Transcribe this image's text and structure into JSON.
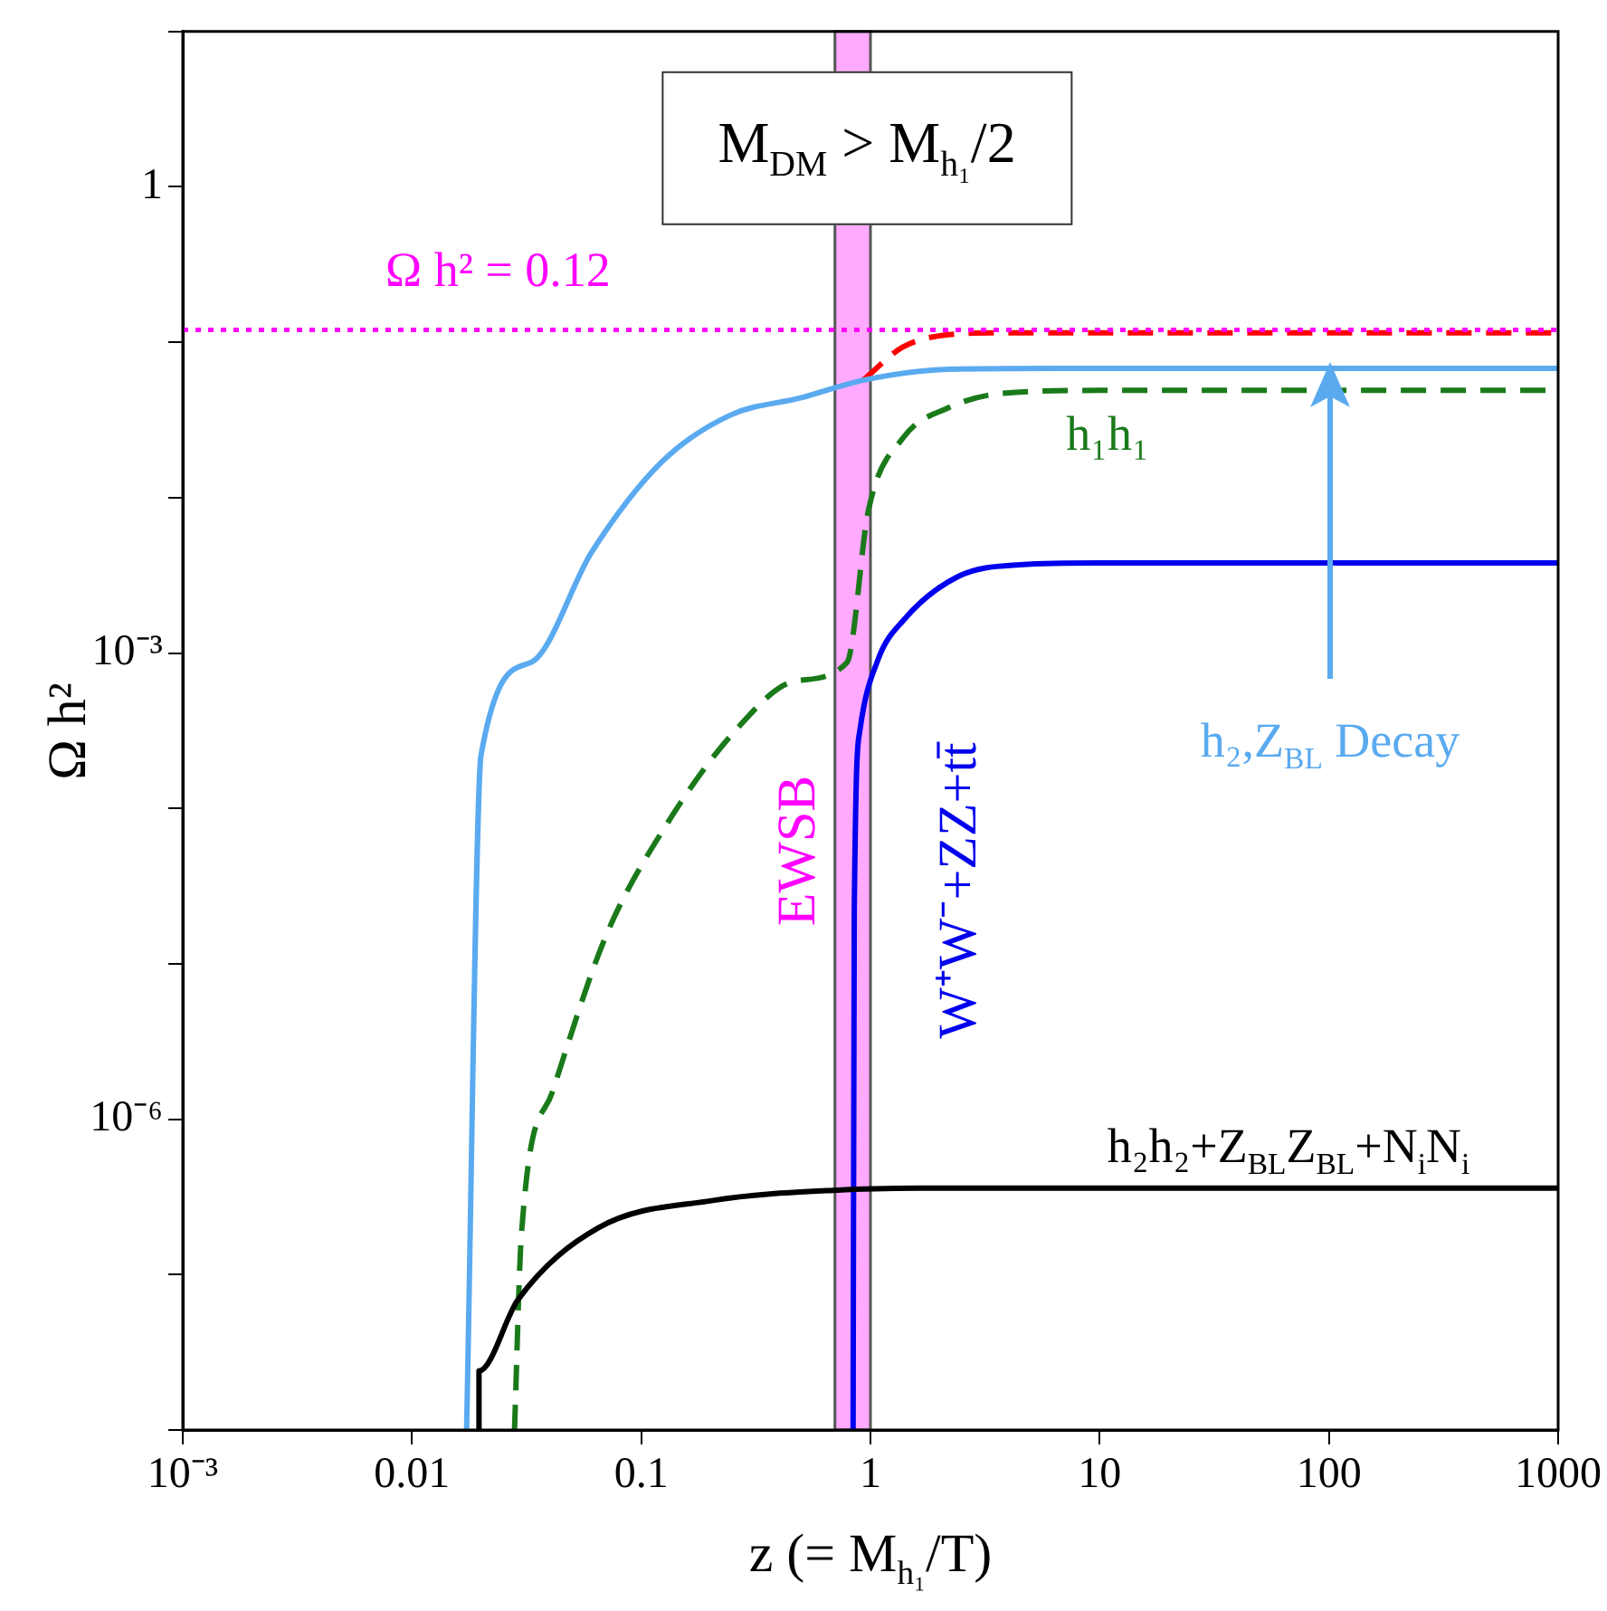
{
  "chart_data": {
    "type": "line",
    "xlabel": "z (= M$_{h₁}$/T)",
    "ylabel": "Ω h²",
    "log": "xy",
    "xlim": [
      0.001,
      1000
    ],
    "xticks": [
      {
        "value": 0.001,
        "label": "10⁻³"
      },
      0.01,
      0.1,
      1,
      10,
      100,
      1000
    ],
    "ylim": [
      1e-08,
      10
    ],
    "yticks": [
      {
        "value": 1e-08,
        "label": null
      },
      {
        "value": 1e-07,
        "label": null
      },
      {
        "value": 1e-06,
        "label": "10⁻⁶"
      },
      {
        "value": 1e-05,
        "label": null
      },
      {
        "value": 0.0001,
        "label": null
      },
      {
        "value": 0.001,
        "label": "10⁻³"
      },
      {
        "value": 0.01,
        "label": null
      },
      {
        "value": 0.1,
        "label": null
      },
      1,
      {
        "value": 10,
        "label": null
      }
    ],
    "series": [
      {
        "color": "#ff0000",
        "line_style": "dashed",
        "x": [
          0.93,
          1.38,
          2.2,
          3.5,
          10,
          1000
        ],
        "values": [
          0.057,
          0.093,
          0.112,
          0.115,
          0.115,
          0.115
        ]
      },
      {
        "name": "h₂,Z$_{BL}$ Decay",
        "color": "#5aaaf0",
        "line_style": "solid",
        "x": [
          0.0173,
          0.02,
          0.033,
          0.061,
          0.122,
          0.245,
          0.5,
          0.93,
          2.2,
          6.6,
          1000
        ],
        "values": [
          1e-08,
          0.00022,
          0.00087,
          0.0045,
          0.0168,
          0.034,
          0.044,
          0.057,
          0.067,
          0.068,
          0.068
        ]
      },
      {
        "name": "h₁h₁",
        "color": "#1a7a1a",
        "line_style": "dashed",
        "x": [
          0.028,
          0.03,
          0.041,
          0.07,
          0.127,
          0.259,
          0.47,
          0.79,
          0.98,
          1.38,
          2.2,
          3.8,
          10,
          1000
        ],
        "values": [
          1e-08,
          1.8e-07,
          1.5e-06,
          1.5e-05,
          7.6e-05,
          0.00032,
          0.00066,
          0.00087,
          0.0083,
          0.024,
          0.038,
          0.047,
          0.049,
          0.049
        ]
      },
      {
        "name": "W⁺W⁻+ZZ+tt̄",
        "color": "#0000ee",
        "line_style": "solid",
        "x": [
          0.84,
          0.85,
          0.9,
          1.08,
          1.38,
          2.4,
          4.5,
          10,
          1000
        ],
        "values": [
          1e-08,
          2.2e-05,
          0.00032,
          0.00091,
          0.0016,
          0.0031,
          0.0037,
          0.0038,
          0.0038
        ]
      },
      {
        "name": "h₂h₂+Z$_{BL}$Z$_{BL}$+N$_{i}$N$_{i}$",
        "color": "#000000",
        "line_style": "solid",
        "x": [
          0.0196,
          0.0196,
          0.029,
          0.065,
          0.206,
          0.72,
          2,
          1000
        ],
        "values": [
          1e-08,
          2.4e-08,
          6.9e-08,
          2e-07,
          3e-07,
          3.5e-07,
          3.6e-07,
          3.6e-07
        ]
      }
    ],
    "ref_lines": [
      {
        "axis": "y",
        "value": 0.12,
        "label": "Ω h² = 0.12",
        "color": "#ff00ff",
        "line_style": "dotted"
      }
    ],
    "bands": [
      {
        "axis": "x",
        "from": 0.7,
        "to": 1.0,
        "label": "EWSB",
        "color": "#ffaaff"
      }
    ],
    "annotations": [
      "M$_{DM}$ > M$_{h₁}$/2"
    ]
  }
}
